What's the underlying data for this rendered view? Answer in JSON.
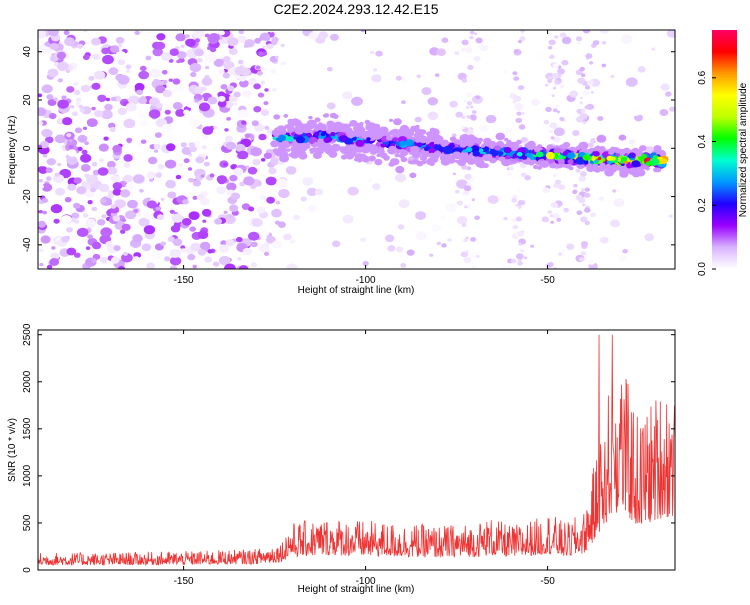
{
  "title": "C2E2.2024.293.12.42.E15",
  "chart_data": [
    {
      "type": "heatmap",
      "xlabel": "Height of straight line (km)",
      "ylabel": "Frequency (Hz)",
      "xlim": [
        -190,
        -15
      ],
      "ylim": [
        -50,
        49
      ],
      "xticks": [
        -150,
        -100,
        -50
      ],
      "yticks": [
        -40,
        -20,
        0,
        20,
        40
      ],
      "signal_track": {
        "x": [
          -125,
          -110,
          -100,
          -90,
          -80,
          -70,
          -60,
          -50,
          -40,
          -30,
          -18
        ],
        "y": [
          4,
          5,
          3,
          2,
          0,
          -1,
          -2,
          -3,
          -4,
          -5,
          -5
        ],
        "amplitude": [
          0.35,
          0.3,
          0.3,
          0.32,
          0.3,
          0.32,
          0.35,
          0.5,
          0.6,
          0.7,
          0.75
        ]
      },
      "colorbar": {
        "label": "Normalized spectral amplitude",
        "range": [
          0,
          0.75
        ],
        "ticks": [
          0,
          0.2,
          0.4,
          0.6
        ],
        "tick_labels": [
          "0.0",
          "0.2",
          "0.4",
          "0.6"
        ],
        "colors": [
          "#ffffff",
          "#d9b3ff",
          "#9a00ff",
          "#2200ff",
          "#0099ff",
          "#00ffd0",
          "#00ff00",
          "#bfff00",
          "#ffff00",
          "#ff9900",
          "#ff0000",
          "#ff0066"
        ]
      }
    },
    {
      "type": "line",
      "xlabel": "Height of straight line (km)",
      "ylabel": "SNR (10 * v/v)",
      "xlim": [
        -190,
        -15
      ],
      "ylim": [
        0,
        2550
      ],
      "xticks": [
        -150,
        -100,
        -50
      ],
      "yticks": [
        0,
        500,
        1000,
        1500,
        2000,
        2500
      ],
      "series": [
        {
          "color": "#ee3333",
          "envelope_x": [
            -190,
            -170,
            -150,
            -130,
            -123,
            -121,
            -110,
            -100,
            -90,
            -80,
            -70,
            -66,
            -60,
            -52,
            -50,
            -45,
            -40,
            -35,
            -33,
            -30,
            -25,
            -18
          ],
          "envelope_y": [
            150,
            150,
            160,
            180,
            250,
            400,
            450,
            420,
            400,
            380,
            400,
            450,
            380,
            450,
            500,
            400,
            500,
            1200,
            1600,
            1800,
            1300,
            1600
          ]
        }
      ]
    }
  ]
}
